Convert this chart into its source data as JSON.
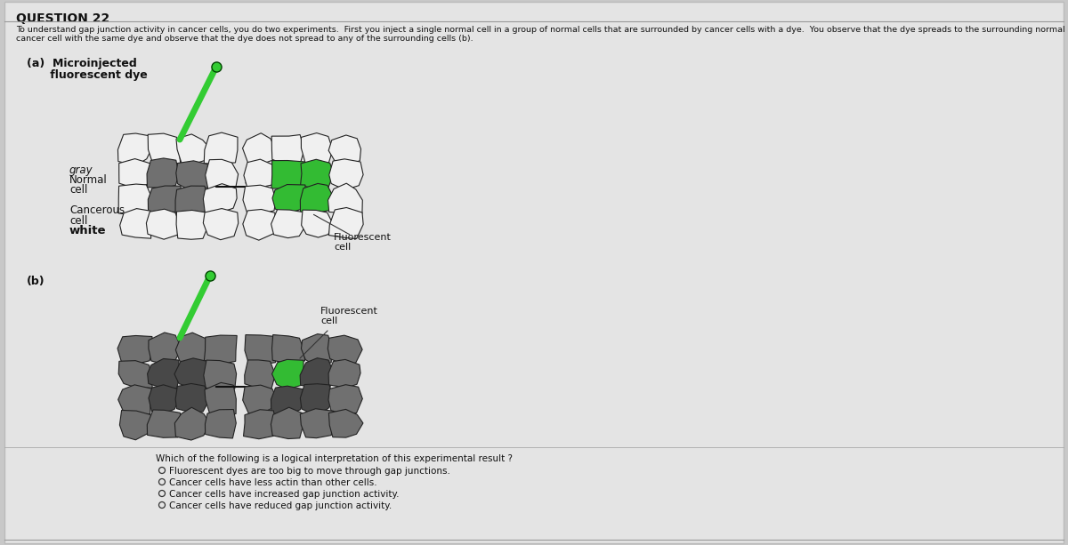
{
  "title": "QUESTION 22",
  "bg_color": "#c8c8c8",
  "panel_color": "#e0e0e0",
  "desc_line1": "To understand gap junction activity in cancer cells, you do two experiments.  First you inject a single normal cell in a group of normal cells that are surrounded by cancer cells with a dye.  You observe that the dye spreads to the surrounding normal cells only (a).  Then you inject a single",
  "desc_line2": "cancer cell with the same dye and observe that the dye does not spread to any of the surrounding cells (b).",
  "label_a_line1": "(a)  Microinjected",
  "label_a_line2": "      fluorescent dye",
  "label_b": "(b)",
  "label_gray": "gray",
  "label_normal": "Normal",
  "label_cell": "cell",
  "label_cancerous": "Cancerous",
  "label_cell_white": "cell",
  "label_white": "white",
  "label_fluor_a": "Fluorescent\ncell",
  "label_fluor_b": "Fluorescent\ncell",
  "question": "Which of the following is a logical interpretation of this experimental result ?",
  "options": [
    "Fluorescent dyes are too big to move through gap junctions.",
    "Cancer cells have less actin than other cells.",
    "Cancer cells have increased gap junction activity.",
    "Cancer cells have reduced gap junction activity."
  ],
  "needle_color": "#33cc33",
  "needle_tip_color": "#005500",
  "needle_end_color": "#33cc33",
  "cell_outer_face": "#f0f0f0",
  "cell_outer_edge": "#222222",
  "cell_inner_gray": "#707070",
  "cell_inner_dark": "#484848",
  "cell_green": "#33bb33",
  "arrow_color": "#111111",
  "text_color": "#111111",
  "title_fontsize": 10,
  "desc_fontsize": 6.8,
  "label_fontsize": 9,
  "option_fontsize": 7.5,
  "question_fontsize": 7.5
}
